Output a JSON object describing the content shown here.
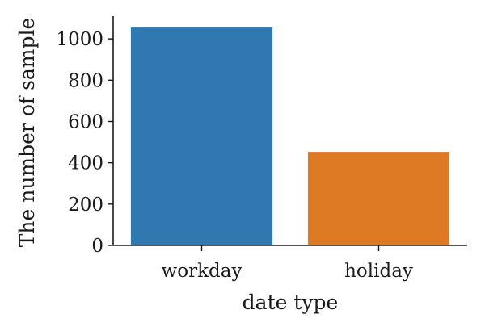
{
  "chart_data": {
    "type": "bar",
    "categories": [
      "workday",
      "holiday"
    ],
    "values": [
      1055,
      453
    ],
    "colors": [
      "#2f78b0",
      "#df7a24"
    ],
    "xlabel": "date type",
    "ylabel": "The number of sample",
    "ylim": [
      0,
      1110
    ],
    "yticks": [
      0,
      200,
      400,
      600,
      800,
      1000
    ],
    "ytick_labels": [
      "0",
      "200",
      "400",
      "600",
      "800",
      "1000"
    ],
    "grid": false,
    "legend": "none"
  }
}
